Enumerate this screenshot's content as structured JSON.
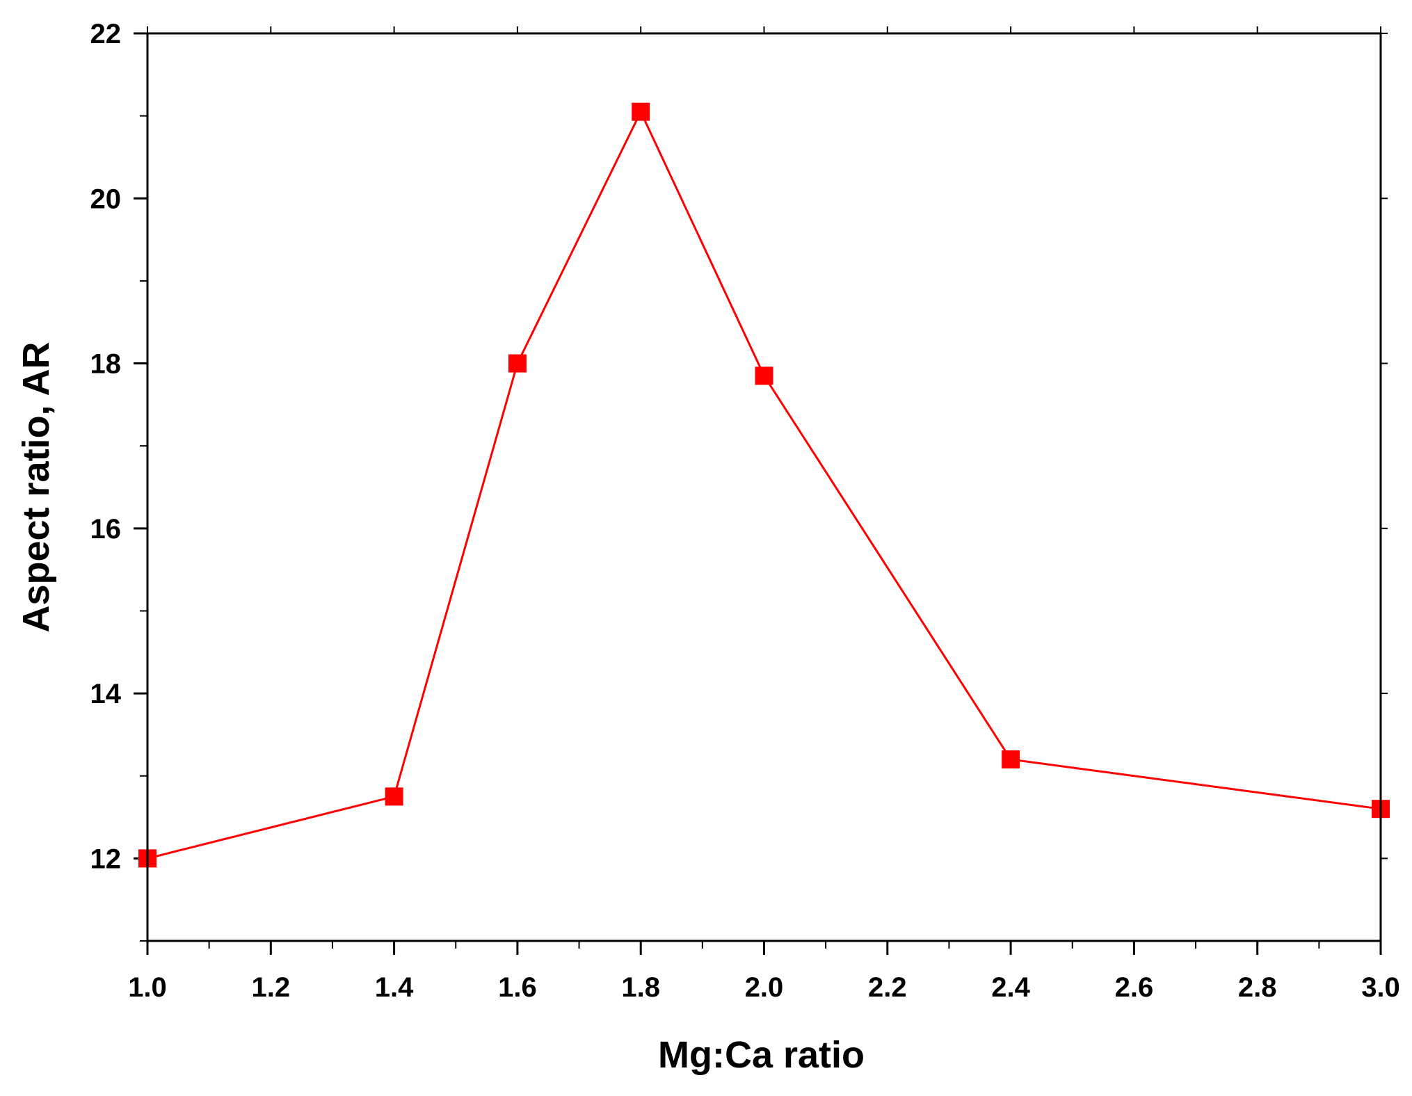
{
  "chart_data": {
    "type": "line",
    "title": "",
    "xlabel": "Mg:Ca ratio",
    "ylabel": "Aspect ratio, AR",
    "xlim": [
      1.0,
      3.0
    ],
    "ylim": [
      11,
      22
    ],
    "xticks": [
      1.0,
      1.2,
      1.4,
      1.6,
      1.8,
      2.0,
      2.2,
      2.4,
      2.6,
      2.8,
      3.0
    ],
    "xtick_labels": [
      "1.0",
      "1.2",
      "1.4",
      "1.6",
      "1.8",
      "2.0",
      "2.2",
      "2.4",
      "2.6",
      "2.8",
      "3.0"
    ],
    "yticks": [
      12,
      14,
      16,
      18,
      20,
      22
    ],
    "ytick_labels": [
      "12",
      "14",
      "16",
      "18",
      "20",
      "22"
    ],
    "grid": false,
    "legend": "none",
    "series": [
      {
        "color": "#ff0000",
        "marker": "square",
        "x": [
          1.0,
          1.4,
          1.6,
          1.8,
          2.0,
          2.4,
          3.0
        ],
        "y": [
          12.0,
          12.75,
          18.0,
          21.05,
          17.85,
          13.2,
          12.6
        ]
      }
    ]
  }
}
